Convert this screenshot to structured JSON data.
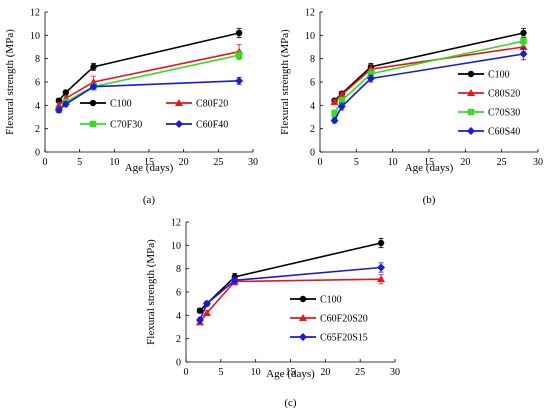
{
  "chart_data": [
    {
      "type": "line",
      "panel_label": "(a)",
      "xlabel": "Age (days)",
      "ylabel": "Flexural strength (MPa)",
      "xlim": [
        0,
        30
      ],
      "ylim": [
        0,
        12
      ],
      "xticks": [
        "0",
        "5",
        "10",
        "15",
        "20",
        "25",
        "30"
      ],
      "yticks": [
        "0",
        "2",
        "4",
        "6",
        "8",
        "10",
        "12"
      ],
      "grid": false,
      "legend_placement": "bottom-right",
      "legend_columns": 2,
      "series": [
        {
          "name": "C100",
          "color": "#000000",
          "marker": "circle",
          "x": [
            2,
            3,
            7,
            28
          ],
          "y": [
            4.4,
            5.1,
            7.3,
            10.2
          ],
          "err": [
            0.2,
            0.2,
            0.3,
            0.4
          ]
        },
        {
          "name": "C80F20",
          "color": "#e8141e",
          "marker": "triangle",
          "x": [
            2,
            3,
            7,
            28
          ],
          "y": [
            4.0,
            4.6,
            6.0,
            8.6
          ],
          "err": [
            0.2,
            0.2,
            0.5,
            0.6
          ]
        },
        {
          "name": "C70F30",
          "color": "#33dd22",
          "marker": "square",
          "x": [
            2,
            3,
            7,
            28
          ],
          "y": [
            3.6,
            4.3,
            5.6,
            8.3
          ],
          "err": [
            0.2,
            0.2,
            0.3,
            0.4
          ]
        },
        {
          "name": "C60F40",
          "color": "#1a1adc",
          "marker": "diamond",
          "x": [
            2,
            3,
            7,
            28
          ],
          "y": [
            3.6,
            4.1,
            5.6,
            6.1
          ],
          "err": [
            0.2,
            0.2,
            0.2,
            0.3
          ]
        }
      ]
    },
    {
      "type": "line",
      "panel_label": "(b)",
      "xlabel": "Age (days)",
      "ylabel": "Flexural strength (MPa)",
      "xlim": [
        0,
        30
      ],
      "ylim": [
        0,
        12
      ],
      "xticks": [
        "0",
        "5",
        "10",
        "15",
        "20",
        "25",
        "30"
      ],
      "yticks": [
        "0",
        "2",
        "4",
        "6",
        "8",
        "10",
        "12"
      ],
      "grid": false,
      "legend_placement": "bottom-right",
      "legend_columns": 1,
      "series": [
        {
          "name": "C100",
          "color": "#000000",
          "marker": "circle",
          "x": [
            2,
            3,
            7,
            28
          ],
          "y": [
            4.4,
            5.0,
            7.3,
            10.2
          ],
          "err": [
            0.2,
            0.2,
            0.3,
            0.4
          ]
        },
        {
          "name": "C80S20",
          "color": "#e8141e",
          "marker": "triangle",
          "x": [
            2,
            3,
            7,
            28
          ],
          "y": [
            4.3,
            4.9,
            7.1,
            9.0
          ],
          "err": [
            0.2,
            0.2,
            0.4,
            0.4
          ]
        },
        {
          "name": "C70S30",
          "color": "#33dd22",
          "marker": "square",
          "x": [
            2,
            3,
            7,
            28
          ],
          "y": [
            3.3,
            4.4,
            6.7,
            9.5
          ],
          "err": [
            0.3,
            0.3,
            0.4,
            0.4
          ]
        },
        {
          "name": "C60S40",
          "color": "#1a1adc",
          "marker": "diamond",
          "x": [
            2,
            3,
            7,
            28
          ],
          "y": [
            2.7,
            3.9,
            6.3,
            8.4
          ],
          "err": [
            0.2,
            0.3,
            0.3,
            0.5
          ]
        }
      ]
    },
    {
      "type": "line",
      "panel_label": "(c)",
      "xlabel": "Age (days)",
      "ylabel": "Flexural strength (MPa)",
      "xlim": [
        0,
        30
      ],
      "ylim": [
        0,
        12
      ],
      "xticks": [
        "0",
        "5",
        "10",
        "15",
        "20",
        "25",
        "30"
      ],
      "yticks": [
        "0",
        "2",
        "4",
        "6",
        "8",
        "10",
        "12"
      ],
      "grid": false,
      "legend_placement": "bottom-right",
      "legend_columns": 1,
      "series": [
        {
          "name": "C100",
          "color": "#000000",
          "marker": "circle",
          "x": [
            2,
            3,
            7,
            28
          ],
          "y": [
            4.4,
            5.0,
            7.3,
            10.2
          ],
          "err": [
            0.2,
            0.2,
            0.3,
            0.4
          ]
        },
        {
          "name": "C60F20S20",
          "color": "#e8141e",
          "marker": "triangle",
          "x": [
            2,
            3,
            7,
            28
          ],
          "y": [
            3.4,
            4.2,
            6.9,
            7.1
          ],
          "err": [
            0.2,
            0.2,
            0.3,
            0.4
          ]
        },
        {
          "name": "C65F20S15",
          "color": "#1a1adc",
          "marker": "diamond",
          "x": [
            2,
            3,
            7,
            28
          ],
          "y": [
            3.6,
            5.0,
            7.0,
            8.1
          ],
          "err": [
            0.2,
            0.2,
            0.3,
            0.4
          ]
        }
      ]
    }
  ]
}
